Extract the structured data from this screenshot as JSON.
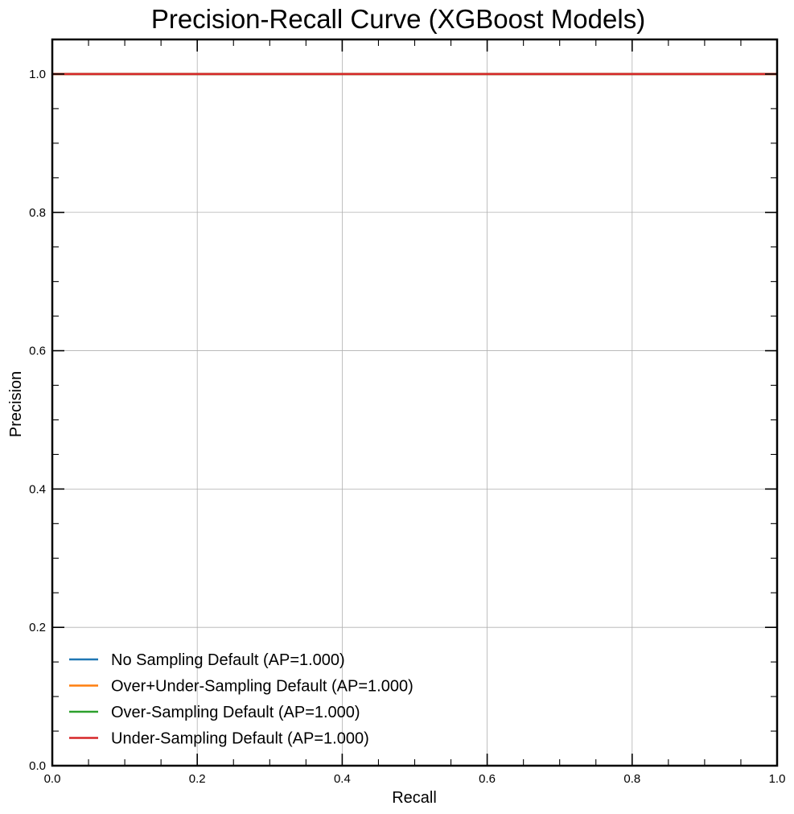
{
  "chart_data": {
    "type": "line",
    "title": "Precision-Recall Curve (XGBoost Models)",
    "xlabel": "Recall",
    "ylabel": "Precision",
    "xlim": [
      0.0,
      1.0
    ],
    "ylim": [
      0.0,
      1.05
    ],
    "x_ticks": [
      0.0,
      0.2,
      0.4,
      0.6,
      0.8,
      1.0
    ],
    "y_ticks": [
      0.0,
      0.2,
      0.4,
      0.6,
      0.8,
      1.0
    ],
    "x_tick_labels": [
      "0.0",
      "0.2",
      "0.4",
      "0.6",
      "0.8",
      "1.0"
    ],
    "y_tick_labels": [
      "0.0",
      "0.2",
      "0.4",
      "0.6",
      "0.8",
      "1.0"
    ],
    "grid": true,
    "legend_position": "lower-left",
    "series": [
      {
        "name": "No Sampling Default (AP=1.000)",
        "color": "#1f77b4",
        "x": [
          0.0,
          1.0
        ],
        "y": [
          1.0,
          1.0
        ]
      },
      {
        "name": "Over+Under-Sampling Default (AP=1.000)",
        "color": "#ff7f0e",
        "x": [
          0.0,
          1.0
        ],
        "y": [
          1.0,
          1.0
        ]
      },
      {
        "name": "Over-Sampling Default (AP=1.000)",
        "color": "#2ca02c",
        "x": [
          0.0,
          1.0
        ],
        "y": [
          1.0,
          1.0
        ]
      },
      {
        "name": "Under-Sampling Default (AP=1.000)",
        "color": "#d62728",
        "x": [
          0.0,
          1.0
        ],
        "y": [
          1.0,
          1.0
        ]
      }
    ]
  }
}
